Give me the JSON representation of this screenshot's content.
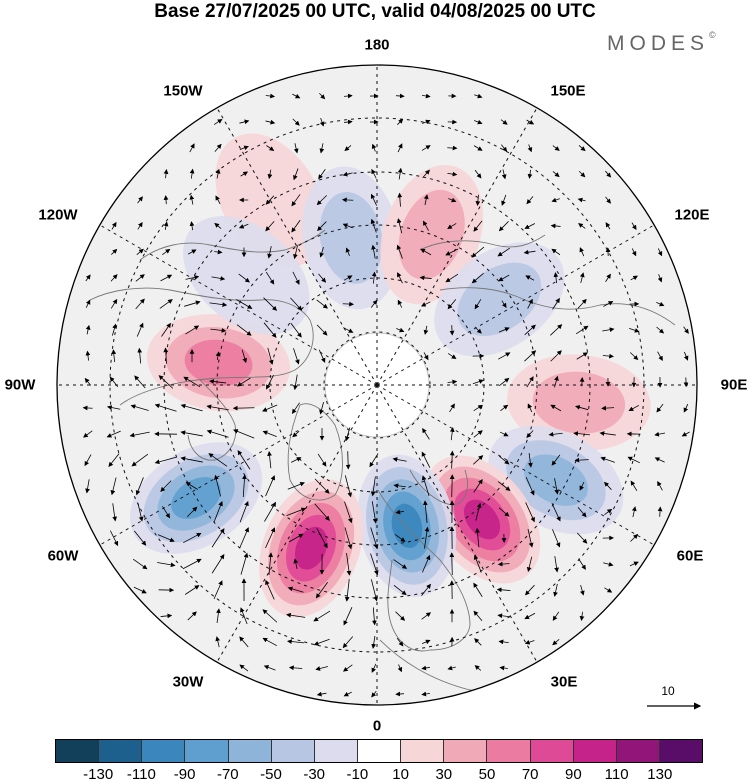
{
  "title": "Base 27/07/2025 00 UTC, valid 04/08/2025 00 UTC",
  "brand": {
    "name": "MODES",
    "mark": "©"
  },
  "longitude_labels": {
    "lon_180": "180",
    "lon_150e": "150E",
    "lon_120e": "120E",
    "lon_90e": "90E",
    "lon_60e": "60E",
    "lon_30e": "30E",
    "lon_0": "0",
    "lon_30w": "30W",
    "lon_60w": "60W",
    "lon_90w": "90W",
    "lon_120w": "120W",
    "lon_150w": "150W"
  },
  "wind_scale": {
    "value": "10"
  },
  "colorbar": {
    "colors": [
      "#123f5a",
      "#1d5f8d",
      "#3a86bd",
      "#5e9fcf",
      "#8fb4da",
      "#b7c7e3",
      "#dcdcee",
      "#ffffff",
      "#f7d6d8",
      "#f0a9b6",
      "#eb7ba0",
      "#df4a96",
      "#c5228a",
      "#92157a",
      "#5a0d68"
    ],
    "ticks": [
      "-130",
      "-110",
      "-90",
      "-70",
      "-50",
      "-30",
      "-10",
      "10",
      "30",
      "50",
      "70",
      "90",
      "110",
      "130"
    ]
  },
  "anomaly_centers": [
    {
      "lon": -150,
      "lat": 50,
      "value": 30
    },
    {
      "lon": -170,
      "lat": 62,
      "value": -40
    },
    {
      "lon": 160,
      "lat": 60,
      "value": 40
    },
    {
      "lon": 125,
      "lat": 62,
      "value": -35
    },
    {
      "lon": 85,
      "lat": 52,
      "value": 40
    },
    {
      "lon": 62,
      "lat": 52,
      "value": -60
    },
    {
      "lon": 38,
      "lat": 58,
      "value": 100
    },
    {
      "lon": 12,
      "lat": 63,
      "value": -110
    },
    {
      "lon": -22,
      "lat": 57,
      "value": 100
    },
    {
      "lon": -58,
      "lat": 50,
      "value": -80
    },
    {
      "lon": -98,
      "lat": 60,
      "value": 65
    },
    {
      "lon": -130,
      "lat": 58,
      "value": -15
    }
  ]
}
